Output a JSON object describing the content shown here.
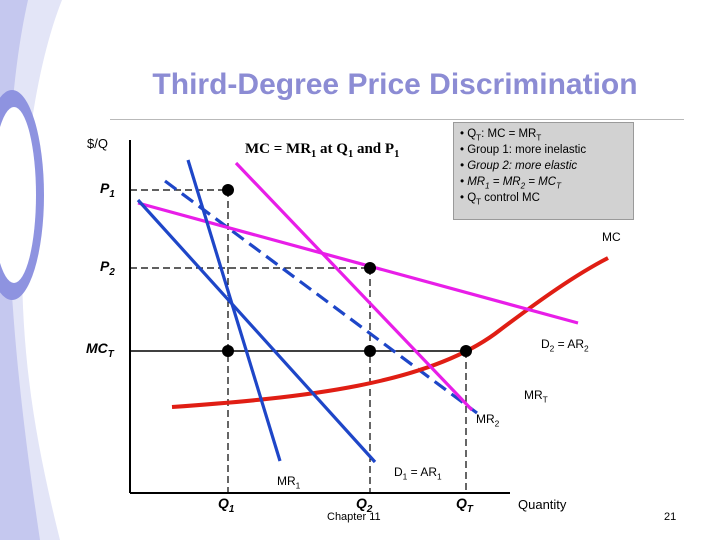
{
  "title": "Third-Degree Price Discrimination",
  "y_axis_label": "$/Q",
  "x_axis_label": "Quantity",
  "equation": {
    "text": "MC = MR",
    "sub1": "1",
    "mid": " at Q",
    "sub2": "1",
    "end": " and P",
    "sub3": "1"
  },
  "notes": [
    {
      "a": "• Q",
      "sub": "T",
      "b": ": MC = MR",
      "sub2": "T"
    },
    {
      "a": "• Group 1:  more inelastic"
    },
    {
      "a": "• Group 2: more elastic"
    },
    {
      "a": "• MR",
      "sub": "1",
      "b": " = MR",
      "sub2": "2",
      "c": " = MC",
      "sub3": "T"
    },
    {
      "a": "• Q",
      "sub": "T",
      "b": " control MC"
    }
  ],
  "price_labels": {
    "p1": {
      "main": "P",
      "sub": "1"
    },
    "p2": {
      "main": "P",
      "sub": "2"
    },
    "mct": {
      "main": "MC",
      "sub": "T"
    }
  },
  "quantity_labels": {
    "q1": {
      "main": "Q",
      "sub": "1"
    },
    "q2": {
      "main": "Q",
      "sub": "2"
    },
    "qt": {
      "main": "Q",
      "sub": "T"
    }
  },
  "curve_labels": {
    "mc": {
      "main": "MC"
    },
    "d2": {
      "main": "D",
      "sub": "2",
      "rest": " = AR",
      "sub2": "2"
    },
    "mrt": {
      "main": "MR",
      "sub": "T"
    },
    "mr2": {
      "main": "MR",
      "sub": "2"
    },
    "mr1": {
      "main": "MR",
      "sub": "1"
    },
    "d1": {
      "main": "D",
      "sub": "1",
      "rest": " = AR",
      "sub2": "1"
    }
  },
  "footer": "Chapter 11",
  "page_number": "21",
  "colors": {
    "title": "#8c8cd4",
    "demand_mr_2": "#e81ee8",
    "demand_mr_1": "#1e46c8",
    "marginal_cost": "#e01e14",
    "mr_total_dashed": "#1e46c8",
    "decor": "#8e93e0"
  }
}
